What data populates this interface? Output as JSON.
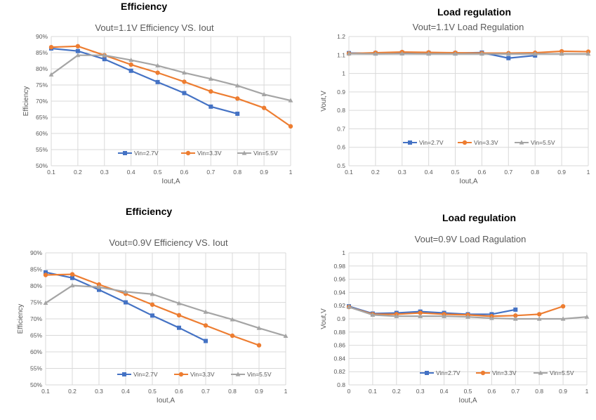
{
  "headings": [
    "Efficiency",
    "Load regulation",
    "Efficiency",
    "Load regulation"
  ],
  "colors": {
    "vin_2_7": "#4472c4",
    "vin_3_3": "#ed7d31",
    "vin_5_5": "#a5a5a5"
  },
  "chart_data": [
    {
      "type": "line",
      "title": "Vout=1.1V    Efficiency  VS.  Iout",
      "xlabel": "Iout,A",
      "ylabel": "Efficiency",
      "xlim": [
        0.1,
        1
      ],
      "ylim": [
        50,
        90
      ],
      "x_ticks": [
        "0.1",
        "0.2",
        "0.3",
        "0.4",
        "0.5",
        "0.6",
        "0.7",
        "0.8",
        "0.9",
        "1"
      ],
      "y_ticks": [
        "50%",
        "55%",
        "60%",
        "65%",
        "70%",
        "75%",
        "80%",
        "85%",
        "90%"
      ],
      "grid": true,
      "legend": "bottom",
      "series": [
        {
          "name": "Vin=2.7V",
          "x": [
            0.1,
            0.2,
            0.3,
            0.4,
            0.5,
            0.6,
            0.7,
            0.8
          ],
          "y": [
            86.3,
            85.5,
            83.0,
            79.4,
            75.9,
            72.5,
            68.3,
            66.1
          ]
        },
        {
          "name": "Vin=3.3V",
          "x": [
            0.1,
            0.2,
            0.3,
            0.4,
            0.5,
            0.6,
            0.7,
            0.8,
            0.9,
            1.0
          ],
          "y": [
            86.7,
            87.0,
            84.2,
            81.3,
            78.8,
            76.0,
            73.0,
            70.8,
            67.9,
            62.2
          ]
        },
        {
          "name": "Vin=5.5V",
          "x": [
            0.1,
            0.2,
            0.3,
            0.4,
            0.5,
            0.6,
            0.7,
            0.8,
            0.9,
            1.0
          ],
          "y": [
            78.2,
            84.2,
            84.2,
            82.7,
            81.0,
            78.8,
            76.9,
            74.8,
            72.1,
            70.2
          ]
        }
      ]
    },
    {
      "type": "line",
      "title": "Vout=1.1V    Load Regulation",
      "xlabel": "Iout,A",
      "ylabel": "Vout,V",
      "xlim": [
        0.1,
        1
      ],
      "ylim": [
        0.5,
        1.2
      ],
      "x_ticks": [
        "0.1",
        "0.2",
        "0.3",
        "0.4",
        "0.5",
        "0.6",
        "0.7",
        "0.8",
        "0.9",
        "1"
      ],
      "y_ticks": [
        "0.5",
        "0.6",
        "0.7",
        "0.8",
        "0.9",
        "1",
        "1.1",
        "1.2"
      ],
      "grid": true,
      "legend": "bottom",
      "series": [
        {
          "name": "Vin=2.7V",
          "x": [
            0.1,
            0.2,
            0.3,
            0.4,
            0.5,
            0.6,
            0.7,
            0.8
          ],
          "y": [
            1.11,
            1.11,
            1.113,
            1.111,
            1.11,
            1.113,
            1.083,
            1.097
          ]
        },
        {
          "name": "Vin=3.3V",
          "x": [
            0.1,
            0.2,
            0.3,
            0.4,
            0.5,
            0.6,
            0.7,
            0.8,
            0.9,
            1.0
          ],
          "y": [
            1.108,
            1.112,
            1.116,
            1.114,
            1.112,
            1.11,
            1.11,
            1.112,
            1.12,
            1.118
          ]
        },
        {
          "name": "Vin=5.5V",
          "x": [
            0.1,
            0.2,
            0.3,
            0.4,
            0.5,
            0.6,
            0.7,
            0.8,
            0.9,
            1.0
          ],
          "y": [
            1.107,
            1.106,
            1.107,
            1.106,
            1.106,
            1.106,
            1.106,
            1.106,
            1.106,
            1.106
          ]
        }
      ]
    },
    {
      "type": "line",
      "title": "Vout=0.9V    Efficiency  VS.  Iout",
      "xlabel": "Iout,A",
      "ylabel": "Efficiency",
      "xlim": [
        0.1,
        1
      ],
      "ylim": [
        50,
        90
      ],
      "x_ticks": [
        "0.1",
        "0.2",
        "0.3",
        "0.4",
        "0.5",
        "0.6",
        "0.7",
        "0.8",
        "0.9",
        "1"
      ],
      "y_ticks": [
        "50%",
        "55%",
        "60%",
        "65%",
        "70%",
        "75%",
        "80%",
        "85%",
        "90%"
      ],
      "grid": true,
      "legend": "bottom",
      "series": [
        {
          "name": "Vin=2.7V",
          "x": [
            0.1,
            0.2,
            0.3,
            0.4,
            0.5,
            0.6,
            0.7
          ],
          "y": [
            84.1,
            82.4,
            78.8,
            75.0,
            71.0,
            67.3,
            63.3
          ]
        },
        {
          "name": "Vin=3.3V",
          "x": [
            0.1,
            0.2,
            0.3,
            0.4,
            0.5,
            0.6,
            0.7,
            0.8,
            0.9
          ],
          "y": [
            83.3,
            83.5,
            80.4,
            77.6,
            74.3,
            71.1,
            68.0,
            64.9,
            62.0
          ]
        },
        {
          "name": "Vin=5.5V",
          "x": [
            0.1,
            0.2,
            0.3,
            0.4,
            0.5,
            0.6,
            0.7,
            0.8,
            0.9,
            1.0
          ],
          "y": [
            74.8,
            80.1,
            79.6,
            78.2,
            77.5,
            74.7,
            72.1,
            69.8,
            67.2,
            64.8
          ]
        }
      ]
    },
    {
      "type": "line",
      "title": "Vout=0.9V    Load Ragulation",
      "xlabel": "Iout,A",
      "ylabel": "Vout,V",
      "xlim": [
        0,
        1
      ],
      "ylim": [
        0.8,
        1.0
      ],
      "x_ticks": [
        "0",
        "0.1",
        "0.2",
        "0.3",
        "0.4",
        "0.5",
        "0.6",
        "0.7",
        "0.8",
        "0.9",
        "1"
      ],
      "y_ticks": [
        "0.8",
        "0.82",
        "0.84",
        "0.86",
        "0.88",
        "0.9",
        "0.92",
        "0.94",
        "0.96",
        "0.98",
        "1"
      ],
      "grid": true,
      "legend": "bottom",
      "series": [
        {
          "name": "Vin=2.7V",
          "x": [
            0,
            0.1,
            0.2,
            0.3,
            0.4,
            0.5,
            0.6,
            0.7
          ],
          "y": [
            0.919,
            0.908,
            0.909,
            0.911,
            0.909,
            0.907,
            0.907,
            0.914
          ]
        },
        {
          "name": "Vin=3.3V",
          "x": [
            0,
            0.1,
            0.2,
            0.3,
            0.4,
            0.5,
            0.6,
            0.7,
            0.8,
            0.9
          ],
          "y": [
            0.918,
            0.907,
            0.907,
            0.909,
            0.907,
            0.906,
            0.904,
            0.905,
            0.907,
            0.919
          ]
        },
        {
          "name": "Vin=5.5V",
          "x": [
            0,
            0.1,
            0.2,
            0.3,
            0.4,
            0.5,
            0.6,
            0.7,
            0.8,
            0.9,
            1.0
          ],
          "y": [
            0.918,
            0.906,
            0.904,
            0.904,
            0.904,
            0.903,
            0.901,
            0.9,
            0.9,
            0.9,
            0.903
          ]
        }
      ]
    }
  ]
}
